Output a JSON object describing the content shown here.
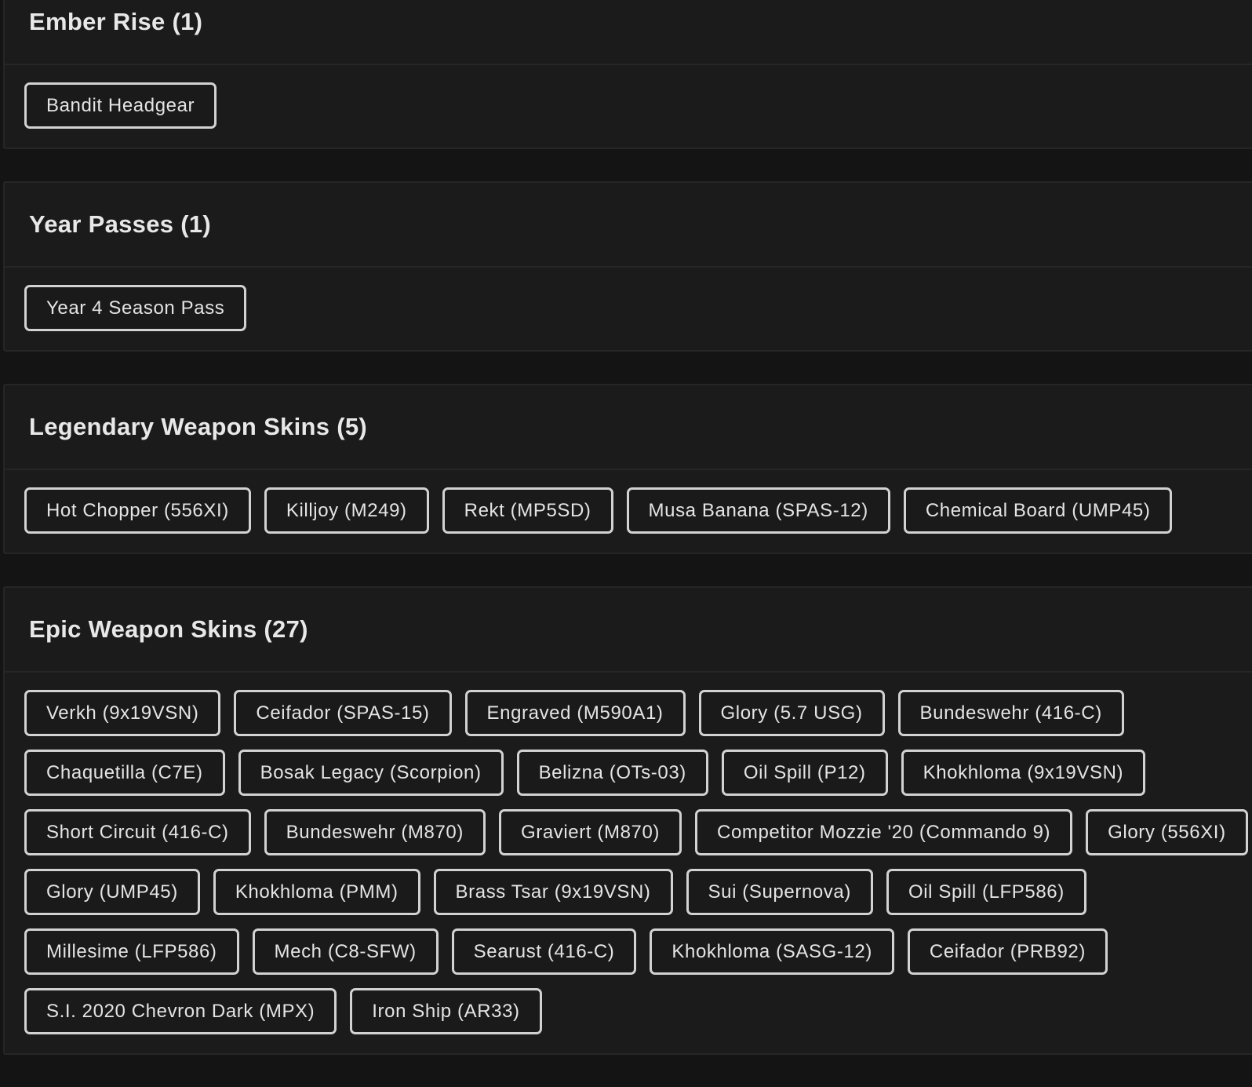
{
  "sections": [
    {
      "title": "Ember Rise (1)",
      "items": [
        "Bandit Headgear"
      ]
    },
    {
      "title": "Year Passes (1)",
      "items": [
        "Year 4 Season Pass"
      ]
    },
    {
      "title": "Legendary Weapon Skins (5)",
      "items": [
        "Hot Chopper (556XI)",
        "Killjoy (M249)",
        "Rekt (MP5SD)",
        "Musa Banana (SPAS-12)",
        "Chemical Board (UMP45)"
      ]
    },
    {
      "title": "Epic Weapon Skins (27)",
      "items": [
        "Verkh (9x19VSN)",
        "Ceifador (SPAS-15)",
        "Engraved (M590A1)",
        "Glory (5.7 USG)",
        "Bundeswehr (416-C)",
        "Chaquetilla (C7E)",
        "Bosak Legacy (Scorpion)",
        "Belizna (OTs-03)",
        "Oil Spill (P12)",
        "Khokhloma (9x19VSN)",
        "Short Circuit (416-C)",
        "Bundeswehr (M870)",
        "Graviert (M870)",
        "Competitor Mozzie '20 (Commando 9)",
        "Glory (556XI)",
        "Glory (UMP45)",
        "Khokhloma (PMM)",
        "Brass Tsar (9x19VSN)",
        "Sui (Supernova)",
        "Oil Spill (LFP586)",
        "Millesime (LFP586)",
        "Mech (C8-SFW)",
        "Searust (416-C)",
        "Khokhloma (SASG-12)",
        "Ceifador (PRB92)",
        "S.I. 2020 Chevron Dark (MPX)",
        "Iron Ship (AR33)"
      ]
    }
  ]
}
